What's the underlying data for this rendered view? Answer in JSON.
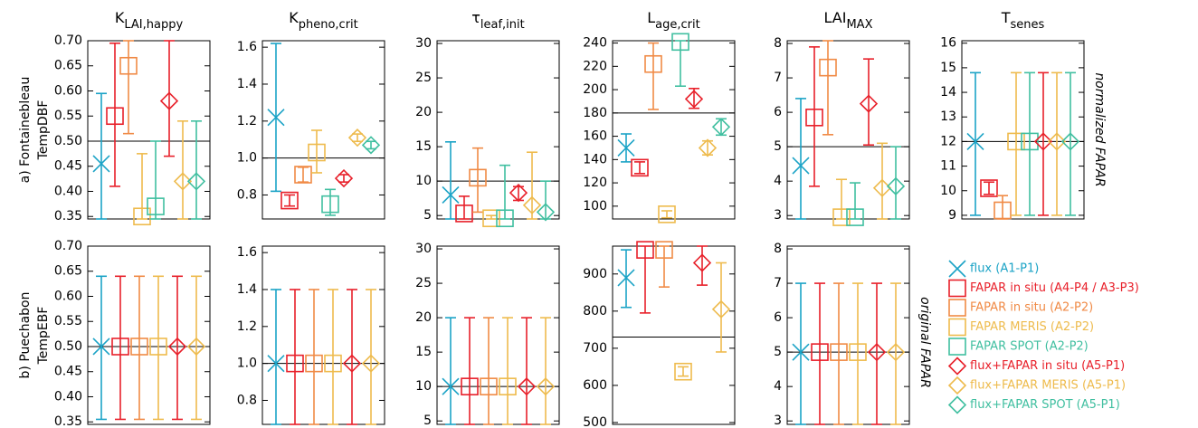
{
  "row_labels": [
    [
      "a) Fontainebleau",
      "TempDBF"
    ],
    [
      "b) Puechabon",
      "TempEBF"
    ]
  ],
  "side_labels": [
    "normalized FAPAR",
    "original FAPAR"
  ],
  "legend": [
    {
      "name": "flux (A1-P1)",
      "color": "#1ba3c6",
      "marker": "x"
    },
    {
      "name": "FAPAR in situ (A4-P4 / A3-P3)",
      "color": "#e8202a",
      "marker": "square"
    },
    {
      "name": "FAPAR in situ (A2-P2)",
      "color": "#f08a45",
      "marker": "square"
    },
    {
      "name": "FAPAR MERIS (A2-P2)",
      "color": "#eebb4d",
      "marker": "square"
    },
    {
      "name": "FAPAR SPOT (A2-P2)",
      "color": "#40bfa0",
      "marker": "square"
    },
    {
      "name": "flux+FAPAR in situ (A5-P1)",
      "color": "#e8202a",
      "marker": "diamond"
    },
    {
      "name": "flux+FAPAR MERIS (A5-P1)",
      "color": "#eebb4d",
      "marker": "diamond"
    },
    {
      "name": "flux+FAPAR SPOT (A5-P1)",
      "color": "#40bfa0",
      "marker": "diamond"
    }
  ],
  "chart_data": [
    {
      "type": "errorbar",
      "title": {
        "symbol": "K",
        "sub": "LAI,happy"
      },
      "ylim": [
        0.345,
        0.7
      ],
      "yticks": [
        0.35,
        {
          "value": 0.4,
          "label": "0.40"
        },
        0.45,
        {
          "value": 0.5,
          "label": "0.50"
        },
        0.55,
        {
          "value": 0.6,
          "label": "0.60"
        },
        0.65,
        {
          "value": 0.7,
          "label": "0.70"
        }
      ],
      "reference": 0.5,
      "values": [
        0.455,
        0.55,
        0.65,
        0.35,
        0.37,
        0.58,
        0.42,
        0.42
      ],
      "lows": [
        0.345,
        0.41,
        0.515,
        0.345,
        0.345,
        0.47,
        0.345,
        0.345
      ],
      "highs": [
        0.595,
        0.695,
        0.7,
        0.475,
        0.5,
        0.7,
        0.54,
        0.54
      ]
    },
    {
      "type": "errorbar",
      "title": {
        "symbol": "K",
        "sub": "pheno,crit"
      },
      "ylim": [
        0.67,
        1.635
      ],
      "yticks": [
        0.8,
        {
          "value": 1,
          "label": "1.0"
        },
        1.2,
        1.4,
        1.6
      ],
      "reference": 1,
      "values": [
        1.22,
        0.77,
        0.91,
        1.03,
        0.75,
        0.89,
        1.11,
        1.07
      ],
      "lows": [
        0.82,
        0.74,
        0.87,
        0.92,
        0.69,
        0.87,
        1.09,
        1.05
      ],
      "highs": [
        1.62,
        0.8,
        0.95,
        1.15,
        0.83,
        0.91,
        1.13,
        1.09
      ]
    },
    {
      "type": "errorbar",
      "title": {
        "symbol": "τ",
        "sub": "leaf,init"
      },
      "ylim": [
        4.5,
        30.4
      ],
      "yticks": [
        5,
        10,
        15,
        20,
        25,
        30
      ],
      "reference": 10,
      "values": [
        8,
        5.3,
        10.5,
        4.6,
        4.6,
        8.3,
        6.5,
        5.5
      ],
      "lows": [
        4.5,
        4.5,
        5.5,
        4.5,
        4.5,
        7.2,
        4.5,
        4.5
      ],
      "highs": [
        15.7,
        7.8,
        14.8,
        5,
        12.3,
        9.2,
        14.2,
        10
      ]
    },
    {
      "type": "errorbar",
      "title": {
        "symbol": "L",
        "sub": "age,crit"
      },
      "ylim": [
        89,
        242
      ],
      "yticks": [
        100,
        120,
        140,
        160,
        180,
        200,
        220,
        240
      ],
      "reference": 180,
      "values": [
        150,
        133,
        222,
        93,
        241,
        192,
        150,
        168
      ],
      "lows": [
        138,
        128,
        183,
        90,
        203,
        184,
        144,
        161
      ],
      "highs": [
        162,
        138,
        240,
        96,
        242,
        201,
        156,
        175
      ]
    },
    {
      "type": "errorbar",
      "title": {
        "symbol": "LAI",
        "sub": "MAX"
      },
      "ylim": [
        2.9,
        8.08
      ],
      "yticks": [
        3,
        4,
        5,
        6,
        7,
        8
      ],
      "reference": 5,
      "values": [
        4.45,
        5.85,
        7.3,
        2.95,
        2.95,
        6.25,
        3.8,
        3.85
      ],
      "lows": [
        2.9,
        3.85,
        5.35,
        2.9,
        2.9,
        5.05,
        2.9,
        2.9
      ],
      "highs": [
        6.4,
        7.9,
        8.08,
        4.05,
        3.95,
        7.55,
        5.1,
        5.0
      ]
    },
    {
      "type": "errorbar",
      "title": {
        "symbol": "T",
        "sub": "senes"
      },
      "ylim": [
        8.85,
        16.1
      ],
      "yticks": [
        9,
        10,
        11,
        12,
        13,
        14,
        15,
        16
      ],
      "reference": 12,
      "values": [
        12,
        10.1,
        9.2,
        12,
        12,
        12,
        12,
        12
      ],
      "lows": [
        9,
        9.85,
        8.85,
        9,
        9,
        9,
        9,
        9
      ],
      "highs": [
        14.8,
        10.35,
        9.8,
        14.8,
        14.8,
        14.8,
        14.8,
        14.8
      ]
    },
    {
      "type": "errorbar",
      "ylim": [
        0.345,
        0.7
      ],
      "yticks": [
        0.35,
        {
          "value": 0.4,
          "label": "0.40"
        },
        0.45,
        {
          "value": 0.5,
          "label": "0.50"
        },
        0.55,
        {
          "value": 0.6,
          "label": "0.60"
        },
        0.65,
        {
          "value": 0.7,
          "label": "0.70"
        }
      ],
      "reference": 0.5,
      "values": [
        0.5,
        0.5,
        0.5,
        0.5,
        null,
        0.5,
        0.5,
        null
      ],
      "lows": [
        0.355,
        0.355,
        0.355,
        0.355,
        null,
        0.355,
        0.355,
        null
      ],
      "highs": [
        0.64,
        0.64,
        0.64,
        0.64,
        null,
        0.64,
        0.64,
        null
      ]
    },
    {
      "type": "errorbar",
      "ylim": [
        0.67,
        1.635
      ],
      "yticks": [
        0.8,
        {
          "value": 1,
          "label": "1.0"
        },
        1.2,
        1.4,
        1.6
      ],
      "reference": 1,
      "values": [
        1,
        1,
        1,
        1,
        null,
        1,
        1,
        null
      ],
      "lows": [
        0.67,
        0.67,
        0.67,
        0.67,
        null,
        0.67,
        0.67,
        null
      ],
      "highs": [
        1.4,
        1.4,
        1.4,
        1.4,
        null,
        1.4,
        1.4,
        null
      ]
    },
    {
      "type": "errorbar",
      "ylim": [
        4.5,
        30.4
      ],
      "yticks": [
        5,
        10,
        15,
        20,
        25,
        30
      ],
      "reference": 10,
      "values": [
        10,
        10,
        10,
        10,
        null,
        10,
        10,
        null
      ],
      "lows": [
        4.5,
        4.5,
        4.5,
        4.5,
        null,
        4.5,
        4.5,
        null
      ],
      "highs": [
        20,
        20,
        20,
        20,
        null,
        20,
        20,
        null
      ]
    },
    {
      "type": "errorbar",
      "ylim": [
        495,
        975
      ],
      "yticks": [
        500,
        600,
        700,
        800,
        900
      ],
      "reference": 730,
      "values": [
        890,
        965,
        965,
        637,
        null,
        930,
        805,
        null
      ],
      "lows": [
        810,
        795,
        865,
        625,
        null,
        870,
        690,
        null
      ],
      "highs": [
        965,
        975,
        975,
        650,
        null,
        975,
        930,
        null
      ]
    },
    {
      "type": "errorbar",
      "ylim": [
        2.9,
        8.08
      ],
      "yticks": [
        3,
        4,
        5,
        6,
        7,
        8
      ],
      "reference": 5,
      "values": [
        5,
        5,
        5,
        5,
        null,
        5,
        5,
        null
      ],
      "lows": [
        2.9,
        2.9,
        2.9,
        2.9,
        null,
        2.9,
        2.9,
        null
      ],
      "highs": [
        7,
        7,
        7,
        7,
        null,
        7,
        7,
        null
      ]
    }
  ]
}
